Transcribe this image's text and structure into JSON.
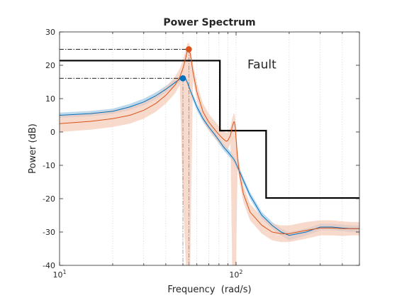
{
  "chart_data": {
    "type": "line",
    "title": "Power Spectrum",
    "xlabel": "Frequency  (rad/s)",
    "ylabel": "Power (dB)",
    "xscale": "log",
    "xlim": [
      10,
      500
    ],
    "ylim": [
      -40,
      30
    ],
    "x_ticks": [
      {
        "value": 10,
        "base": "10",
        "exp": "1"
      },
      {
        "value": 100,
        "base": "10",
        "exp": "2"
      }
    ],
    "y_ticks": [
      -40,
      -30,
      -20,
      -10,
      0,
      10,
      20,
      30
    ],
    "y_tick_labels": [
      "-40",
      "-30",
      "-20",
      "-10",
      "0",
      "10",
      "20",
      "30"
    ],
    "grid": "minor dotted",
    "annotation": {
      "text": "Fault",
      "x": 140,
      "y": 19,
      "color": "#cc0000"
    },
    "threshold": {
      "color": "#000000",
      "x": [
        10,
        81,
        81,
        148,
        148,
        500
      ],
      "y": [
        21.4,
        21.4,
        0.4,
        0.4,
        -19.8,
        -19.8
      ]
    },
    "series": [
      {
        "color": "#0072bd",
        "band_color": "#a5cbe6",
        "x": [
          10,
          15,
          20,
          25,
          30,
          35,
          40,
          45,
          48,
          50,
          52,
          53,
          55,
          60,
          65,
          70,
          75,
          80,
          85,
          90,
          95,
          98,
          100,
          105,
          110,
          120,
          140,
          160,
          180,
          200,
          250,
          300,
          350,
          400,
          450,
          500
        ],
        "y": [
          5,
          5.5,
          6.2,
          7.5,
          9,
          10.8,
          12.8,
          14.8,
          15.8,
          16.1,
          15.8,
          14.8,
          12.5,
          7.5,
          4,
          1.5,
          -0.5,
          -2.5,
          -4.5,
          -6,
          -7.5,
          -8.5,
          -9.5,
          -12,
          -14.5,
          -19,
          -25,
          -28,
          -30,
          -31,
          -30,
          -28.5,
          -28.5,
          -28.8,
          -29,
          -29
        ],
        "band_upper": [
          5.8,
          6.3,
          7.0,
          8.4,
          10,
          11.8,
          13.8,
          15.8,
          16.6,
          16.8,
          16.5,
          15.6,
          13.5,
          8.5,
          5,
          2.5,
          0.5,
          -1.5,
          -3.5,
          -5,
          -6.5,
          -7.5,
          -8.5,
          -11,
          -13.5,
          -18,
          -24,
          -27,
          -29,
          -30,
          -29,
          -27.5,
          -27.5,
          -27.8,
          -28,
          -28
        ],
        "band_lower": [
          4.2,
          4.7,
          5.4,
          6.6,
          8,
          9.8,
          11.8,
          13.8,
          15,
          15.3,
          15,
          14,
          11.5,
          6.5,
          3,
          0.5,
          -1.5,
          -3.5,
          -5.5,
          -7,
          -8.5,
          -9.5,
          -10.5,
          -13,
          -15.5,
          -20,
          -26,
          -29,
          -31,
          -32.5,
          -31,
          -29.5,
          -29.5,
          -29.8,
          -30,
          -30
        ],
        "marker": {
          "x": 50,
          "y": 16.1,
          "ref_y": 16.1
        }
      },
      {
        "color": "#d95319",
        "band_color": "#f5cbb8",
        "x": [
          10,
          15,
          20,
          25,
          30,
          35,
          40,
          45,
          48,
          50,
          52,
          53,
          54,
          55,
          57,
          60,
          65,
          70,
          75,
          80,
          85,
          88,
          90,
          93,
          95,
          97,
          98,
          99,
          100,
          102,
          105,
          110,
          120,
          140,
          160,
          180,
          200,
          250,
          300,
          350,
          400,
          450,
          500
        ],
        "y": [
          2.5,
          3.2,
          4,
          5,
          6.5,
          8.5,
          11,
          14,
          16.5,
          19,
          22.5,
          24.5,
          24.8,
          23.5,
          18,
          12,
          6,
          3,
          1,
          -0.8,
          -2.2,
          -2.8,
          -2.5,
          -1,
          1.5,
          3,
          3,
          1.5,
          -2,
          -8,
          -13,
          -18.5,
          -24,
          -28,
          -30,
          -30.5,
          -30.5,
          -29.5,
          -28.8,
          -28.8,
          -29,
          -29,
          -29
        ],
        "band_upper": [
          5,
          5.7,
          6.5,
          7.5,
          9,
          11,
          13.5,
          16.5,
          19,
          21.5,
          25,
          26.5,
          26.8,
          25.5,
          20.5,
          14.5,
          8.5,
          5.5,
          3.5,
          1.7,
          0.3,
          -0.3,
          0,
          1.5,
          4,
          5.5,
          5.5,
          4,
          0.5,
          -5.5,
          -10.5,
          -16,
          -21.5,
          -25.5,
          -27.5,
          -28,
          -28,
          -27,
          -26.5,
          -26.5,
          -26.8,
          -27,
          -27
        ],
        "band_lower": [
          0,
          0.7,
          1.5,
          2.5,
          4,
          6,
          8.5,
          11.5,
          14,
          -20,
          -40,
          -40,
          -40,
          -40,
          15.5,
          9.5,
          3.5,
          0.5,
          -1.5,
          -3.3,
          -4.7,
          -5.3,
          -5,
          -3.5,
          -40,
          -40,
          -40,
          -40,
          -40,
          -10.5,
          -15.5,
          -21,
          -26.5,
          -30.5,
          -32.5,
          -33,
          -33,
          -32,
          -31,
          -31,
          -31.2,
          -31,
          -31
        ],
        "marker": {
          "x": 54,
          "y": 24.8,
          "ref_y": 24.8
        }
      }
    ]
  }
}
